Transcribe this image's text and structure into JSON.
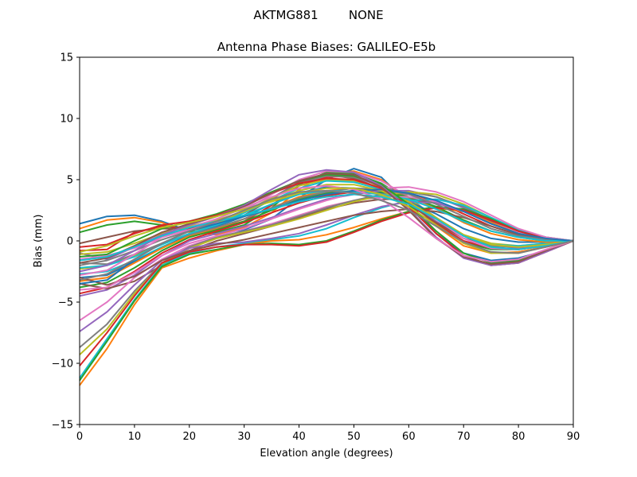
{
  "chart_data": {
    "type": "line",
    "suptitle": "AKTMG881        NONE",
    "title": "Antenna Phase Biases: GALILEO-E5b",
    "xlabel": "Elevation angle (degrees)",
    "ylabel": "Bias (mm)",
    "xlim": [
      0,
      90
    ],
    "ylim": [
      -15,
      15
    ],
    "xticks": [
      0,
      10,
      20,
      30,
      40,
      50,
      60,
      70,
      80,
      90
    ],
    "yticks": [
      -15,
      -10,
      -5,
      0,
      5,
      10,
      15
    ],
    "grid": false,
    "legend": "none",
    "x": [
      0,
      5,
      10,
      15,
      20,
      25,
      30,
      35,
      40,
      45,
      50,
      55,
      60,
      65,
      70,
      75,
      80,
      85,
      90
    ],
    "series": [
      {
        "color": "#1f77b4",
        "values": [
          1.4,
          2.0,
          2.1,
          1.6,
          0.8,
          0.6,
          0.9,
          1.8,
          3.5,
          5.0,
          5.9,
          5.2,
          3.0,
          0.6,
          -1.0,
          -1.6,
          -1.4,
          -0.8,
          0.0
        ]
      },
      {
        "color": "#ff7f0e",
        "values": [
          1.0,
          1.7,
          1.9,
          1.5,
          0.7,
          0.5,
          1.1,
          2.3,
          4.2,
          5.5,
          5.7,
          5.0,
          3.4,
          1.2,
          -0.4,
          -1.0,
          -0.9,
          -0.5,
          0.0
        ]
      },
      {
        "color": "#2ca02c",
        "values": [
          0.7,
          1.3,
          1.6,
          1.3,
          0.8,
          0.7,
          1.3,
          2.7,
          4.6,
          5.6,
          5.5,
          4.7,
          3.3,
          1.4,
          -0.1,
          -0.7,
          -0.7,
          -0.4,
          0.0
        ]
      },
      {
        "color": "#d62728",
        "values": [
          -0.8,
          -0.7,
          0.7,
          1.2,
          1.0,
          1.0,
          1.6,
          2.9,
          4.5,
          5.2,
          5.3,
          4.5,
          3.1,
          1.4,
          0.0,
          -0.6,
          -0.7,
          -0.4,
          0.0
        ]
      },
      {
        "color": "#9467bd",
        "values": [
          -1.0,
          -1.5,
          -0.5,
          0.5,
          1.0,
          1.5,
          2.4,
          3.5,
          4.8,
          5.5,
          5.2,
          4.5,
          3.3,
          1.6,
          0.2,
          -0.6,
          -0.6,
          -0.3,
          0.0
        ]
      },
      {
        "color": "#8c564b",
        "values": [
          -0.2,
          0.3,
          0.8,
          1.0,
          1.0,
          1.3,
          2.1,
          3.4,
          4.8,
          5.4,
          5.1,
          4.3,
          3.0,
          1.5,
          0.2,
          -0.4,
          -0.5,
          -0.3,
          0.0
        ]
      },
      {
        "color": "#e377c2",
        "values": [
          -1.5,
          -1.2,
          -0.6,
          0.3,
          0.9,
          1.5,
          2.5,
          3.8,
          5.0,
          5.7,
          5.6,
          4.9,
          3.6,
          1.8,
          0.2,
          -0.6,
          -0.7,
          -0.4,
          0.0
        ]
      },
      {
        "color": "#7f7f7f",
        "values": [
          -2.0,
          -1.6,
          -0.8,
          0.1,
          0.8,
          1.4,
          2.3,
          3.5,
          4.7,
          5.3,
          5.2,
          4.6,
          3.5,
          1.9,
          0.4,
          -0.4,
          -0.5,
          -0.3,
          0.0
        ]
      },
      {
        "color": "#bcbd22",
        "values": [
          -2.3,
          -2.0,
          -1.2,
          -0.3,
          0.6,
          1.4,
          2.4,
          3.5,
          4.5,
          5.0,
          4.9,
          4.4,
          3.4,
          1.9,
          0.5,
          -0.2,
          -0.4,
          -0.2,
          0.0
        ]
      },
      {
        "color": "#17becf",
        "values": [
          -2.7,
          -2.5,
          -1.6,
          -0.5,
          0.5,
          1.3,
          2.3,
          3.3,
          4.3,
          4.9,
          4.8,
          4.2,
          3.2,
          1.8,
          0.4,
          -0.3,
          -0.4,
          -0.2,
          0.0
        ]
      },
      {
        "color": "#1f77b4",
        "values": [
          -3.0,
          -2.8,
          -1.7,
          -0.6,
          0.5,
          1.2,
          2.0,
          3.0,
          3.9,
          4.4,
          4.3,
          3.9,
          3.2,
          2.2,
          1.0,
          0.2,
          -0.1,
          -0.1,
          0.0
        ]
      },
      {
        "color": "#ff7f0e",
        "values": [
          -3.3,
          -3.0,
          -1.8,
          -0.6,
          0.4,
          1.0,
          1.8,
          2.7,
          3.6,
          4.1,
          4.3,
          4.1,
          3.6,
          2.7,
          1.5,
          0.6,
          0.1,
          -0.1,
          0.0
        ]
      },
      {
        "color": "#2ca02c",
        "values": [
          -3.8,
          -3.4,
          -2.2,
          -0.8,
          0.3,
          0.9,
          1.6,
          2.5,
          3.4,
          3.9,
          4.1,
          4.0,
          3.6,
          2.8,
          1.7,
          0.8,
          0.3,
          0.0,
          0.0
        ]
      },
      {
        "color": "#d62728",
        "values": [
          -4.3,
          -3.8,
          -2.5,
          -1.0,
          0.1,
          0.8,
          1.5,
          2.3,
          3.1,
          3.7,
          4.0,
          4.1,
          3.9,
          3.2,
          2.2,
          1.2,
          0.5,
          0.1,
          0.0
        ]
      },
      {
        "color": "#9467bd",
        "values": [
          -4.5,
          -4.0,
          -2.8,
          -1.2,
          0.0,
          0.6,
          1.2,
          1.9,
          2.7,
          3.4,
          3.8,
          4.1,
          4.1,
          3.6,
          2.7,
          1.6,
          0.7,
          0.2,
          0.0
        ]
      },
      {
        "color": "#8c564b",
        "values": [
          -3.5,
          -3.9,
          -3.3,
          -2.0,
          -0.8,
          0.0,
          0.6,
          1.2,
          1.9,
          2.6,
          3.1,
          3.4,
          3.4,
          3.1,
          2.5,
          1.6,
          0.8,
          0.2,
          0.0
        ]
      },
      {
        "color": "#e377c2",
        "values": [
          -6.5,
          -5.0,
          -3.0,
          -1.5,
          -0.4,
          0.3,
          0.8,
          1.4,
          2.1,
          2.8,
          3.3,
          3.6,
          3.6,
          3.2,
          2.4,
          1.5,
          0.7,
          0.2,
          0.0
        ]
      },
      {
        "color": "#7f7f7f",
        "values": [
          -8.7,
          -6.8,
          -4.1,
          -1.8,
          -0.5,
          0.3,
          0.8,
          1.3,
          2.0,
          2.7,
          3.3,
          3.8,
          4.0,
          3.6,
          2.8,
          1.7,
          0.8,
          0.2,
          0.0
        ]
      },
      {
        "color": "#bcbd22",
        "values": [
          -9.3,
          -7.2,
          -4.3,
          -1.9,
          -0.6,
          0.2,
          0.7,
          1.2,
          1.8,
          2.5,
          3.2,
          3.7,
          4.0,
          3.8,
          3.0,
          1.9,
          0.9,
          0.3,
          0.0
        ]
      },
      {
        "color": "#17becf",
        "values": [
          -11.2,
          -8.0,
          -4.8,
          -2.0,
          -1.0,
          -0.5,
          -0.2,
          0.1,
          0.4,
          1.0,
          1.9,
          2.7,
          3.3,
          3.4,
          2.9,
          1.9,
          0.9,
          0.3,
          0.0
        ]
      },
      {
        "color": "#ff7f0e",
        "values": [
          -11.8,
          -8.8,
          -5.2,
          -2.2,
          -1.4,
          -0.8,
          -0.3,
          0.0,
          0.1,
          0.5,
          1.1,
          1.8,
          2.4,
          2.7,
          2.4,
          1.5,
          0.6,
          0.1,
          0.0
        ]
      },
      {
        "color": "#2ca02c",
        "values": [
          -11.4,
          -8.2,
          -4.9,
          -2.1,
          -1.1,
          -0.7,
          -0.3,
          -0.2,
          -0.3,
          0.0,
          0.8,
          1.7,
          2.4,
          2.8,
          2.6,
          1.8,
          0.8,
          0.2,
          0.0
        ]
      },
      {
        "color": "#d62728",
        "values": [
          -10.2,
          -7.5,
          -4.5,
          -1.8,
          -0.9,
          -0.5,
          -0.3,
          -0.3,
          -0.4,
          -0.1,
          0.7,
          1.6,
          2.3,
          2.7,
          2.5,
          1.7,
          0.8,
          0.2,
          0.0
        ]
      },
      {
        "color": "#9467bd",
        "values": [
          -7.4,
          -5.8,
          -3.6,
          -1.6,
          -0.6,
          -0.2,
          -0.1,
          0.2,
          0.6,
          1.3,
          2.1,
          2.8,
          3.2,
          3.1,
          2.4,
          1.4,
          0.6,
          0.1,
          0.0
        ]
      },
      {
        "color": "#8c564b",
        "values": [
          -3.0,
          -3.6,
          -2.9,
          -1.6,
          -0.8,
          -0.3,
          0.1,
          0.6,
          1.1,
          1.6,
          2.1,
          2.4,
          2.6,
          2.4,
          1.9,
          1.2,
          0.5,
          0.1,
          0.0
        ]
      },
      {
        "color": "#e377c2",
        "values": [
          -4.0,
          -3.8,
          -2.6,
          -1.2,
          -0.2,
          0.4,
          1.0,
          1.8,
          2.6,
          3.3,
          3.9,
          4.3,
          4.4,
          4.0,
          3.2,
          2.1,
          1.0,
          0.3,
          0.0
        ]
      },
      {
        "color": "#7f7f7f",
        "values": [
          -1.8,
          -1.9,
          -1.1,
          -0.2,
          0.5,
          1.1,
          1.8,
          2.7,
          3.5,
          4.0,
          4.3,
          4.2,
          3.8,
          3.0,
          2.0,
          1.0,
          0.4,
          0.1,
          0.0
        ]
      },
      {
        "color": "#bcbd22",
        "values": [
          -1.1,
          -0.9,
          -0.2,
          0.6,
          1.2,
          1.7,
          2.4,
          3.3,
          4.1,
          4.6,
          4.6,
          4.1,
          3.2,
          1.8,
          0.5,
          -0.3,
          -0.5,
          -0.3,
          0.0
        ]
      },
      {
        "color": "#17becf",
        "values": [
          -2.2,
          -2.0,
          -1.3,
          -0.3,
          0.6,
          1.3,
          2.1,
          3.0,
          3.8,
          4.1,
          4.0,
          3.8,
          3.4,
          2.6,
          1.6,
          0.8,
          0.3,
          0.0,
          0.0
        ]
      },
      {
        "color": "#1f77b4",
        "values": [
          -3.5,
          -3.2,
          -1.5,
          -0.2,
          0.8,
          1.4,
          2.0,
          2.6,
          3.3,
          3.8,
          4.1,
          4.2,
          3.9,
          3.3,
          2.4,
          1.4,
          0.6,
          0.2,
          0.0
        ]
      },
      {
        "color": "#2ca02c",
        "values": [
          -1.3,
          -1.1,
          0.0,
          1.0,
          1.6,
          2.2,
          3.0,
          4.0,
          4.9,
          5.4,
          5.3,
          4.6,
          3.0,
          0.8,
          -1.0,
          -1.8,
          -1.6,
          -0.8,
          0.0
        ]
      },
      {
        "color": "#d62728",
        "values": [
          -0.5,
          -0.3,
          0.6,
          1.3,
          1.6,
          2.1,
          2.9,
          3.9,
          4.7,
          5.1,
          5.0,
          4.3,
          2.8,
          0.6,
          -1.2,
          -2.0,
          -1.8,
          -0.9,
          0.0
        ]
      },
      {
        "color": "#9467bd",
        "values": [
          -2.5,
          -2.0,
          -0.8,
          0.5,
          1.3,
          2.0,
          2.9,
          4.2,
          5.4,
          5.8,
          5.6,
          4.5,
          2.6,
          0.3,
          -1.4,
          -2.0,
          -1.8,
          -0.9,
          0.0
        ]
      },
      {
        "color": "#8c564b",
        "values": [
          -1.8,
          -1.4,
          -0.4,
          0.7,
          1.4,
          2.0,
          2.8,
          3.9,
          4.9,
          5.5,
          5.4,
          4.4,
          2.5,
          0.2,
          -1.3,
          -1.9,
          -1.7,
          -0.8,
          0.0
        ]
      },
      {
        "color": "#e377c2",
        "values": [
          -2.8,
          -2.4,
          -1.1,
          0.3,
          1.1,
          1.8,
          2.7,
          3.6,
          4.3,
          4.5,
          4.2,
          3.4,
          1.9,
          0.2,
          -1.2,
          -1.7,
          -1.5,
          -0.7,
          0.0
        ]
      },
      {
        "color": "#bcbd22",
        "values": [
          -0.9,
          -0.4,
          0.4,
          1.1,
          1.5,
          2.0,
          2.6,
          3.2,
          3.9,
          4.3,
          4.3,
          3.8,
          2.8,
          1.3,
          -0.2,
          -1.0,
          -1.0,
          -0.5,
          0.0
        ]
      },
      {
        "color": "#17becf",
        "values": [
          -1.6,
          -1.3,
          -0.5,
          0.4,
          1.1,
          1.6,
          2.1,
          2.6,
          3.2,
          3.6,
          3.8,
          3.6,
          3.0,
          1.8,
          0.4,
          -0.5,
          -0.7,
          -0.4,
          0.0
        ]
      },
      {
        "color": "#7f7f7f",
        "values": [
          -3.2,
          -2.7,
          -1.5,
          -0.2,
          0.8,
          1.6,
          2.5,
          3.4,
          4.0,
          4.1,
          3.9,
          3.3,
          2.5,
          1.2,
          -0.1,
          -0.9,
          -1.0,
          -0.5,
          0.0
        ]
      }
    ]
  }
}
